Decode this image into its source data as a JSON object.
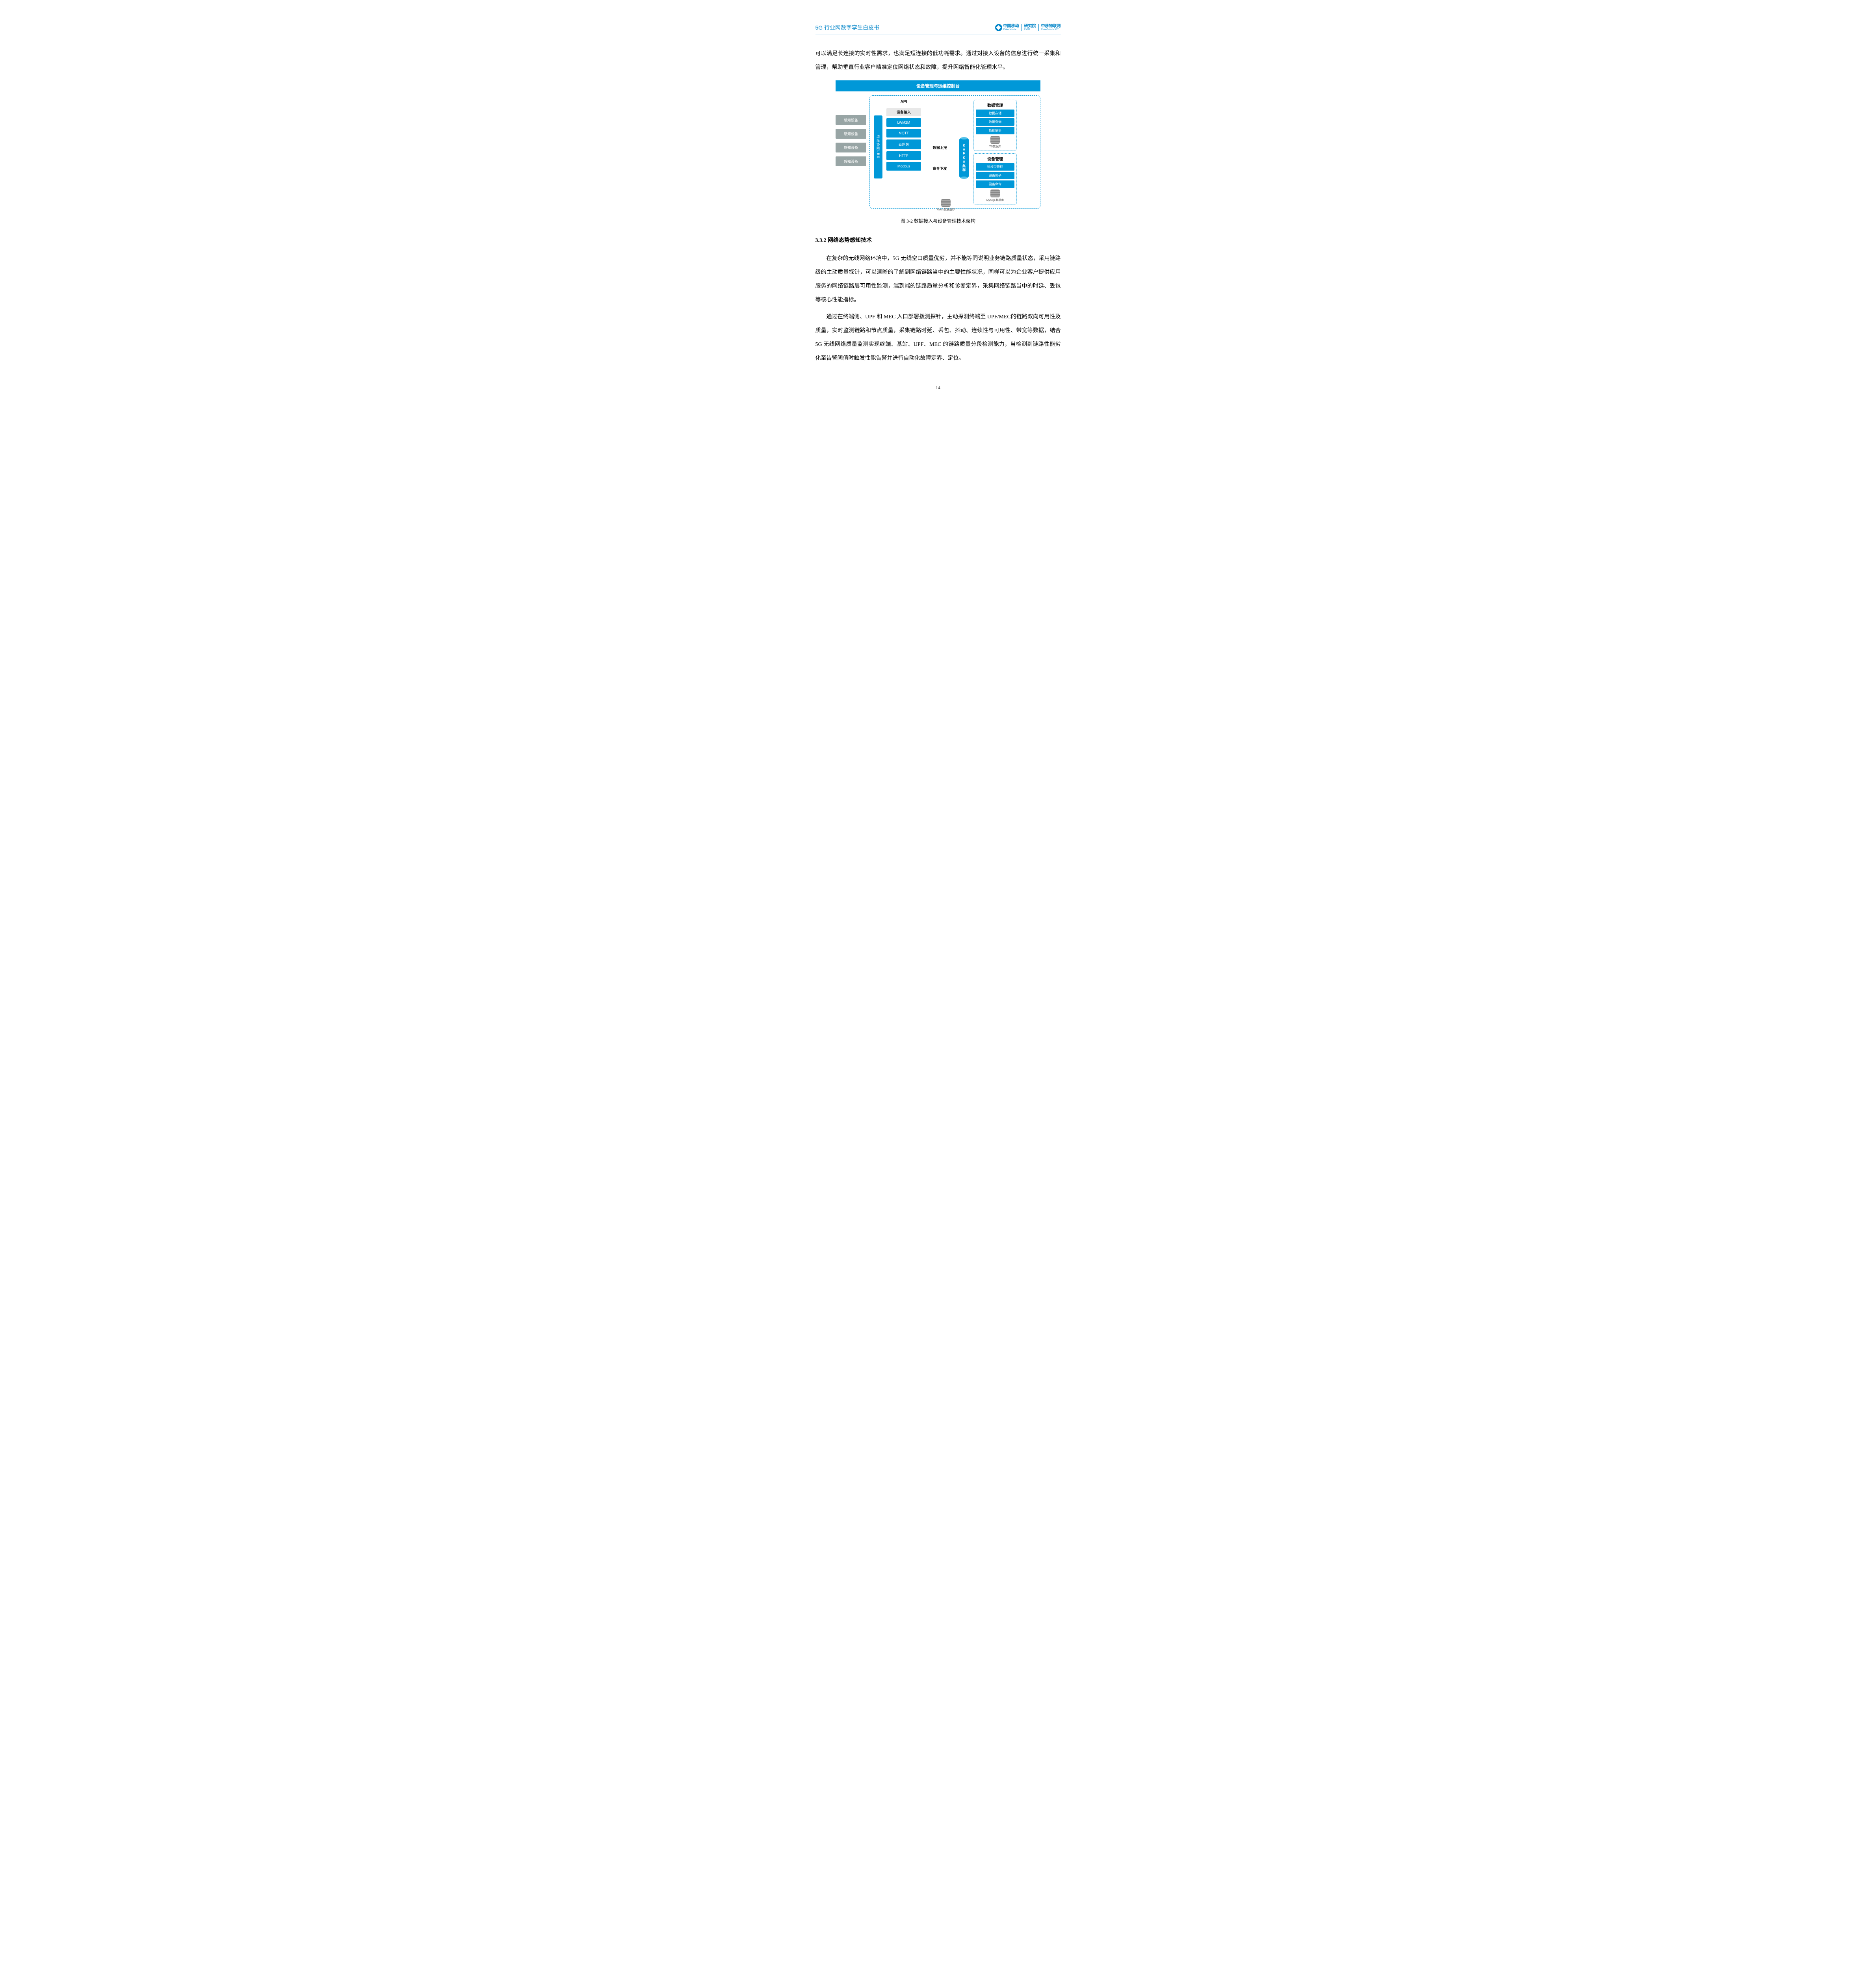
{
  "header": {
    "title": "5G 行业网数字孪生白皮书",
    "logo1_cn": "中国移动",
    "logo1_en": "China Mobile",
    "logo2_cn": "研究院",
    "logo2_en": "CMRI",
    "logo3_cn": "中移物联网",
    "logo3_en": "China Mobile IOT"
  },
  "para1": "可以满足长连接的实时性需求，也满足短连接的低功耗需求。通过对接入设备的信息进行统一采集和管理，帮助垂直行业客户精准定位网络状态和故障，提升网络智能化管理水平。",
  "diagram": {
    "title": "设备管理与运维控制台",
    "sensors": [
      "感知设备",
      "感知设备",
      "感知设备",
      "感知设备"
    ],
    "lbs": "边缘协同LBS",
    "api": "API",
    "access_header": "设备接入",
    "protocols": [
      "LWM2M",
      "MQTT",
      "云网关",
      "HTTP",
      "Modbus"
    ],
    "flow_up": "数据上报",
    "flow_down": "命令下发",
    "kafka": "KAFKA集群",
    "data_mgmt_title": "数据管理",
    "data_mgmt_items": [
      "数据存储",
      "数据查询",
      "数据解析"
    ],
    "ts_db": "TS数据库",
    "dev_mgmt_title": "设备管理",
    "dev_mgmt_items": [
      "物模型管理",
      "设备影子",
      "设备命令"
    ],
    "mysql_db": "MySQL数据库",
    "redis": "Redis数据缓存",
    "caption": "图 3-2  数据接入与设备管理技术架构",
    "colors": {
      "primary": "#0098d8",
      "sensor_bg": "#98a5a5",
      "header_blue": "#0084c8"
    }
  },
  "section_heading": "3.3.2  网络态势感知技术",
  "para2": "在复杂的无线网络环境中，5G 无线空口质量优劣，并不能等同说明业务链路质量状态，采用链路级的主动质量探针，可以清晰的了解到网络链路当中的主要性能状况，同样可以为企业客户提供应用服务的网络链路层可用性监测，端到端的链路质量分析和诊断定界，采集网络链路当中的时延、丢包等核心性能指标。",
  "para3": "通过在终端侧、UPF 和 MEC 入口部署拨测探针，主动探测终端至 UPF/MEC的链路双向可用性及质量，实时监测链路和节点质量，采集链路时延、丢包、抖动、连续性与可用性、带宽等数据，结合 5G 无线网络质量监测实现终端、基站、UPF、MEC 的链路质量分段检测能力，当检测到链路性能劣化至告警阈值时触发性能告警并进行自动化故障定界、定位。",
  "page_number": "14"
}
